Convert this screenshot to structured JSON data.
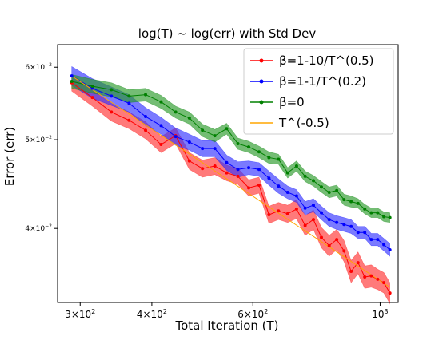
{
  "chart_data": {
    "type": "line",
    "title": "log(T) ~ log(err) with Std Dev",
    "xlabel": "Total Iteration (T)",
    "ylabel": "Error (err)",
    "xscale": "log",
    "yscale": "log",
    "xlim": [
      274,
      1075
    ],
    "ylim": [
      0.0332,
      0.0635
    ],
    "grid": false,
    "legend_position": "top-right",
    "x_ticks": [
      {
        "value": 300,
        "base": "3×10",
        "exp": "2"
      },
      {
        "value": 400,
        "base": "4×10",
        "exp": "2"
      },
      {
        "value": 600,
        "base": "6×10",
        "exp": "2"
      },
      {
        "value": 1000,
        "base": "10",
        "exp": "3"
      }
    ],
    "y_ticks": [
      {
        "value": 0.04,
        "base": "4×10",
        "exp": "−2"
      },
      {
        "value": 0.05,
        "base": "5×10",
        "exp": "−2"
      },
      {
        "value": 0.06,
        "base": "6×10",
        "exp": "−2"
      }
    ],
    "x": [
      290,
      315,
      340,
      365,
      390,
      415,
      440,
      465,
      490,
      515,
      540,
      565,
      590,
      615,
      640,
      665,
      690,
      715,
      740,
      765,
      790,
      815,
      840,
      865,
      890,
      915,
      940,
      965,
      990,
      1015,
      1040
    ],
    "series": [
      {
        "name": "β=1-10/T^(0.5)",
        "color": "#ff0000",
        "band_color": "#ff3333",
        "marker": "dot",
        "values": [
          0.0577,
          0.0556,
          0.0536,
          0.0525,
          0.0512,
          0.0494,
          0.0505,
          0.0474,
          0.0465,
          0.0468,
          0.046,
          0.0456,
          0.0443,
          0.0446,
          0.0414,
          0.0418,
          0.0415,
          0.042,
          0.0403,
          0.0409,
          0.0391,
          0.0383,
          0.0389,
          0.0378,
          0.0359,
          0.0367,
          0.0354,
          0.0355,
          0.0352,
          0.0349,
          0.034
        ],
        "std": [
          0.0012,
          0.0012,
          0.0012,
          0.0011,
          0.0011,
          0.001,
          0.001,
          0.001,
          0.001,
          0.001,
          0.0009,
          0.0009,
          0.0009,
          0.0009,
          0.0009,
          0.0009,
          0.0009,
          0.001,
          0.001,
          0.001,
          0.001,
          0.001,
          0.001,
          0.001,
          0.001,
          0.001,
          0.001,
          0.001,
          0.0009,
          0.0009,
          0.0009
        ]
      },
      {
        "name": "β=1-1/T^(0.2)",
        "color": "#0000ff",
        "band_color": "#3333ff",
        "marker": "dot",
        "values": [
          0.0587,
          0.0569,
          0.0558,
          0.0548,
          0.053,
          0.0518,
          0.0504,
          0.0497,
          0.0489,
          0.0489,
          0.0472,
          0.0464,
          0.0466,
          0.0464,
          0.0454,
          0.0445,
          0.0438,
          0.0434,
          0.0421,
          0.0424,
          0.0416,
          0.0409,
          0.0406,
          0.0404,
          0.0402,
          0.0396,
          0.0396,
          0.0389,
          0.0389,
          0.0384,
          0.0379
        ],
        "std": [
          0.0014,
          0.0014,
          0.0013,
          0.0012,
          0.0012,
          0.0011,
          0.0011,
          0.001,
          0.001,
          0.001,
          0.0009,
          0.0009,
          0.0008,
          0.0008,
          0.0008,
          0.0008,
          0.0007,
          0.0007,
          0.0007,
          0.0007,
          0.0007,
          0.0007,
          0.0007,
          0.0007,
          0.0007,
          0.0006,
          0.0006,
          0.0006,
          0.0006,
          0.0006,
          0.0006
        ]
      },
      {
        "name": "β=0",
        "color": "#008000",
        "band_color": "#2a9a2a",
        "marker": "dot",
        "values": [
          0.0579,
          0.0572,
          0.0567,
          0.0558,
          0.056,
          0.055,
          0.0536,
          0.0528,
          0.0512,
          0.0505,
          0.0514,
          0.0495,
          0.0491,
          0.0485,
          0.0478,
          0.0476,
          0.046,
          0.0468,
          0.0456,
          0.0451,
          0.0444,
          0.0438,
          0.044,
          0.043,
          0.0428,
          0.0426,
          0.042,
          0.0416,
          0.0416,
          0.0412,
          0.0411
        ],
        "std": [
          0.001,
          0.001,
          0.001,
          0.0009,
          0.0009,
          0.0009,
          0.0008,
          0.0008,
          0.0008,
          0.0008,
          0.0007,
          0.0007,
          0.0007,
          0.0007,
          0.0007,
          0.0006,
          0.0006,
          0.0006,
          0.0006,
          0.0006,
          0.0006,
          0.0006,
          0.0006,
          0.0006,
          0.0006,
          0.0005,
          0.0005,
          0.0005,
          0.0005,
          0.0005,
          0.0005
        ]
      },
      {
        "name": "T^(-0.5)",
        "color": "#ffa500",
        "marker": "none",
        "x": [
          290,
          1040
        ],
        "values": [
          0.0587,
          0.0345
        ]
      }
    ]
  }
}
